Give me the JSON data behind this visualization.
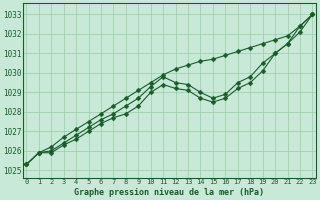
{
  "title": "Graphe pression niveau de la mer (hPa)",
  "bg_color": "#c8e8d8",
  "grid_color": "#99ccaa",
  "line_color": "#1a5c2a",
  "x_ticks": [
    0,
    1,
    2,
    3,
    4,
    5,
    6,
    7,
    8,
    9,
    10,
    11,
    12,
    13,
    14,
    15,
    16,
    17,
    18,
    19,
    20,
    21,
    22,
    23
  ],
  "y_ticks": [
    1025,
    1026,
    1027,
    1028,
    1029,
    1030,
    1031,
    1032,
    1033
  ],
  "ylim": [
    1024.6,
    1033.6
  ],
  "xlim": [
    -0.3,
    23.3
  ],
  "series1": [
    1025.3,
    1025.9,
    1025.9,
    1026.3,
    1026.6,
    1027.0,
    1027.4,
    1027.7,
    1027.9,
    1028.3,
    1029.0,
    1029.4,
    1029.2,
    1029.1,
    1028.7,
    1028.5,
    1028.7,
    1029.2,
    1029.5,
    1030.1,
    1031.0,
    1031.5,
    1032.4,
    1033.0
  ],
  "series2": [
    1025.3,
    1025.9,
    1026.0,
    1026.4,
    1026.8,
    1027.2,
    1027.6,
    1027.9,
    1028.3,
    1028.7,
    1029.3,
    1029.8,
    1029.5,
    1029.4,
    1029.0,
    1028.7,
    1028.9,
    1029.5,
    1029.8,
    1030.5,
    1031.0,
    1031.5,
    1032.1,
    1033.0
  ],
  "series3_straight": [
    1025.3,
    1025.9,
    1026.2,
    1026.7,
    1027.1,
    1027.5,
    1027.9,
    1028.3,
    1028.7,
    1029.1,
    1029.5,
    1029.9,
    1030.2,
    1030.4,
    1030.6,
    1030.7,
    1030.9,
    1031.1,
    1031.3,
    1031.5,
    1031.7,
    1031.9,
    1032.4,
    1033.0
  ],
  "marker_style": "D",
  "marker_size": 2.5,
  "linewidth": 0.8,
  "title_fontsize": 6,
  "tick_fontsize": 5,
  "ytick_fontsize": 5.5
}
